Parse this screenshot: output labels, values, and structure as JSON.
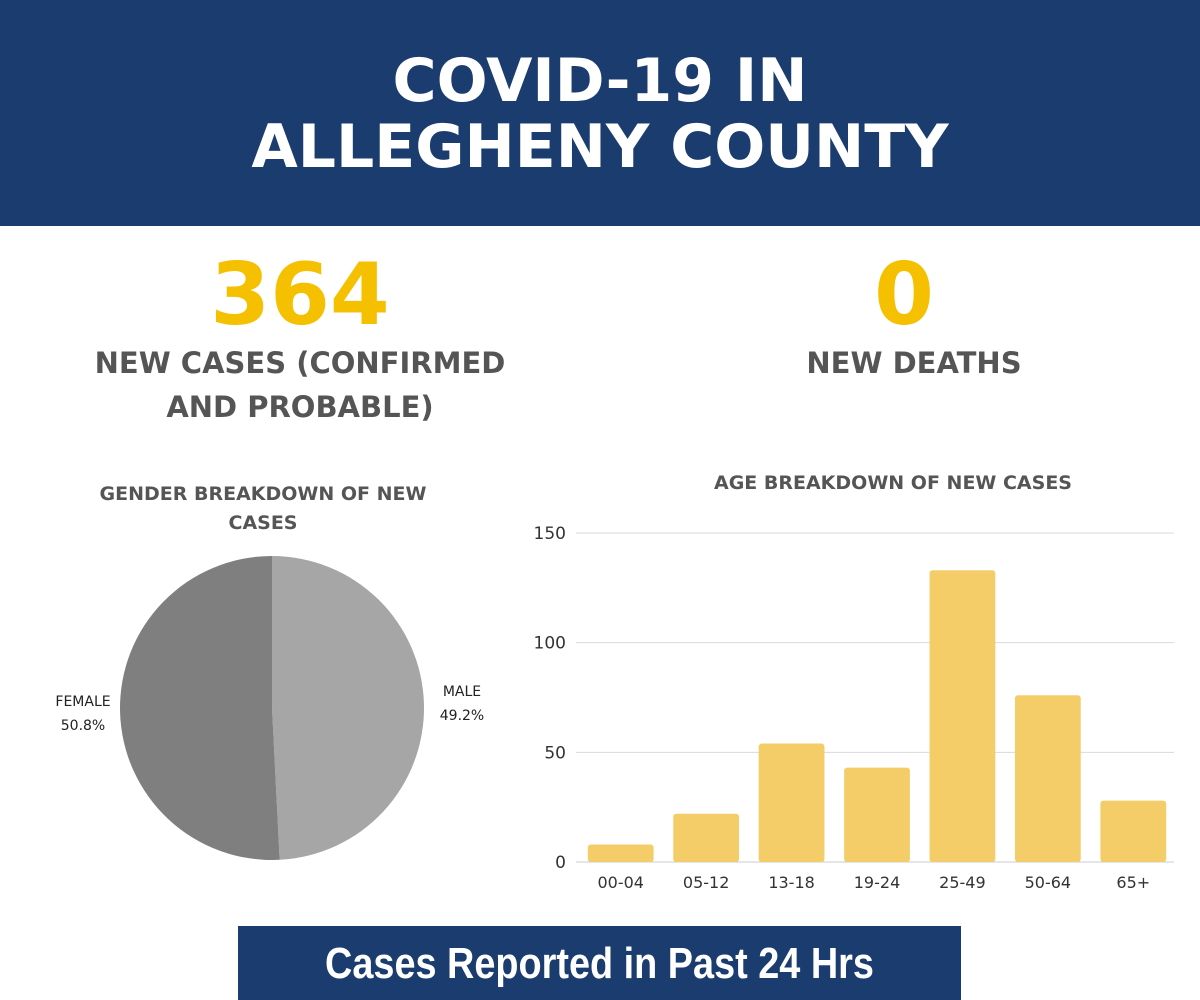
{
  "header": {
    "title_line1": "COVID-19 IN",
    "title_line2": "ALLEGHENY COUNTY"
  },
  "stats": {
    "cases": {
      "value": "364",
      "label_line1": "NEW CASES (CONFIRMED",
      "label_line2": "AND PROBABLE)"
    },
    "deaths": {
      "value": "0",
      "label": "NEW DEATHS"
    }
  },
  "colors": {
    "header_bg": "#1b3c6f",
    "accent_yellow": "#f5c000",
    "label_gray": "#555555",
    "bar_fill": "#f5cd68",
    "pie_male": "#a6a6a6",
    "pie_female": "#7f7f7f",
    "gridline": "#d9d9d9"
  },
  "chart_data": [
    {
      "type": "pie",
      "title_line1": "GENDER BREAKDOWN OF NEW",
      "title_line2": "CASES",
      "slices": [
        {
          "name": "MALE",
          "value": 49.2,
          "label": "49.2%"
        },
        {
          "name": "FEMALE",
          "value": 50.8,
          "label": "50.8%"
        }
      ]
    },
    {
      "type": "bar",
      "title": "AGE BREAKDOWN OF  NEW CASES",
      "categories": [
        "00-04",
        "05-12",
        "13-18",
        "19-24",
        "25-49",
        "50-64",
        "65+"
      ],
      "values": [
        8,
        22,
        54,
        43,
        133,
        76,
        28
      ],
      "ylim": [
        0,
        150
      ],
      "yticks": [
        0,
        50,
        100,
        150
      ],
      "grid": true
    }
  ],
  "footer": {
    "text": "Cases Reported in Past 24 Hrs"
  }
}
